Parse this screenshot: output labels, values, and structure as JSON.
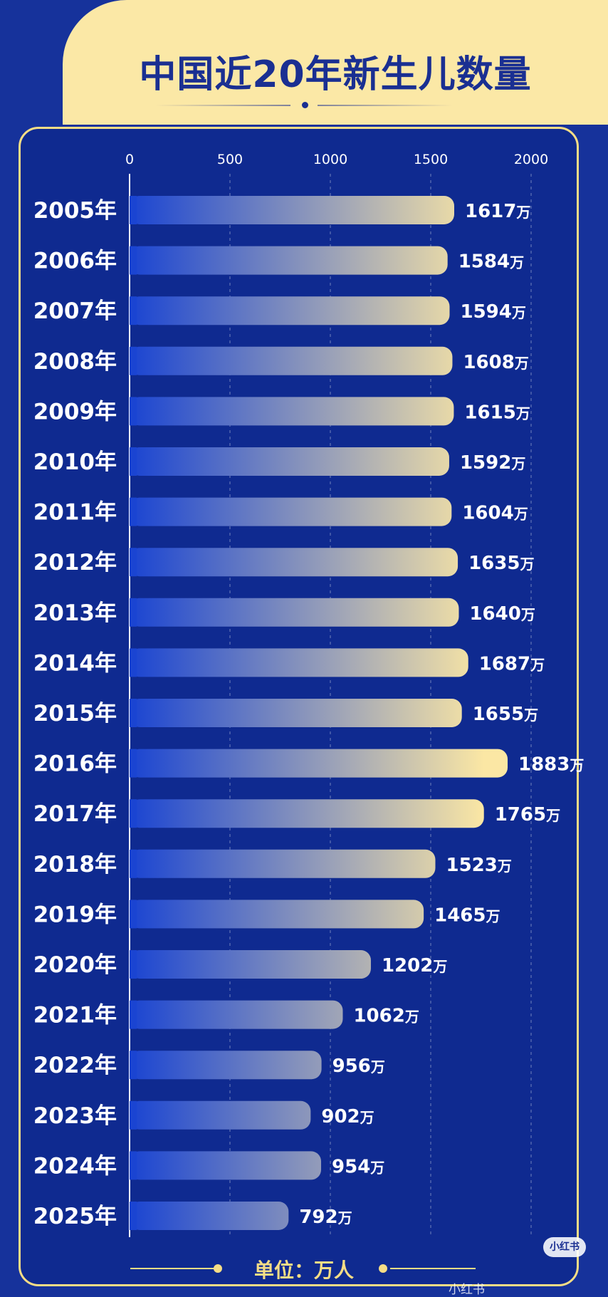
{
  "title": "中国近20年新生儿数量",
  "footer": "单位：万人",
  "watermark": {
    "badge": "小红书",
    "text": "小红书"
  },
  "colors": {
    "background": "#16329b",
    "panel": "#0f2a90",
    "cream": "#fbe8a6",
    "gold": "#f6dd86",
    "bar_start": "#1a44d2",
    "bar_end": "#fbe7a4",
    "title": "#1a2f92"
  },
  "chart_data": {
    "type": "bar",
    "orientation": "horizontal",
    "categories": [
      "2005年",
      "2006年",
      "2007年",
      "2008年",
      "2009年",
      "2010年",
      "2011年",
      "2012年",
      "2013年",
      "2014年",
      "2015年",
      "2016年",
      "2017年",
      "2018年",
      "2019年",
      "2020年",
      "2021年",
      "2022年",
      "2023年",
      "2024年",
      "2025年"
    ],
    "values": [
      1617,
      1584,
      1594,
      1608,
      1615,
      1592,
      1604,
      1635,
      1640,
      1687,
      1655,
      1883,
      1765,
      1523,
      1465,
      1202,
      1062,
      956,
      902,
      954,
      792
    ],
    "value_suffix": "万",
    "xticks": [
      0,
      500,
      1000,
      1500,
      2000
    ],
    "xlim": [
      0,
      2000
    ],
    "unit": "万人",
    "grid": true
  }
}
